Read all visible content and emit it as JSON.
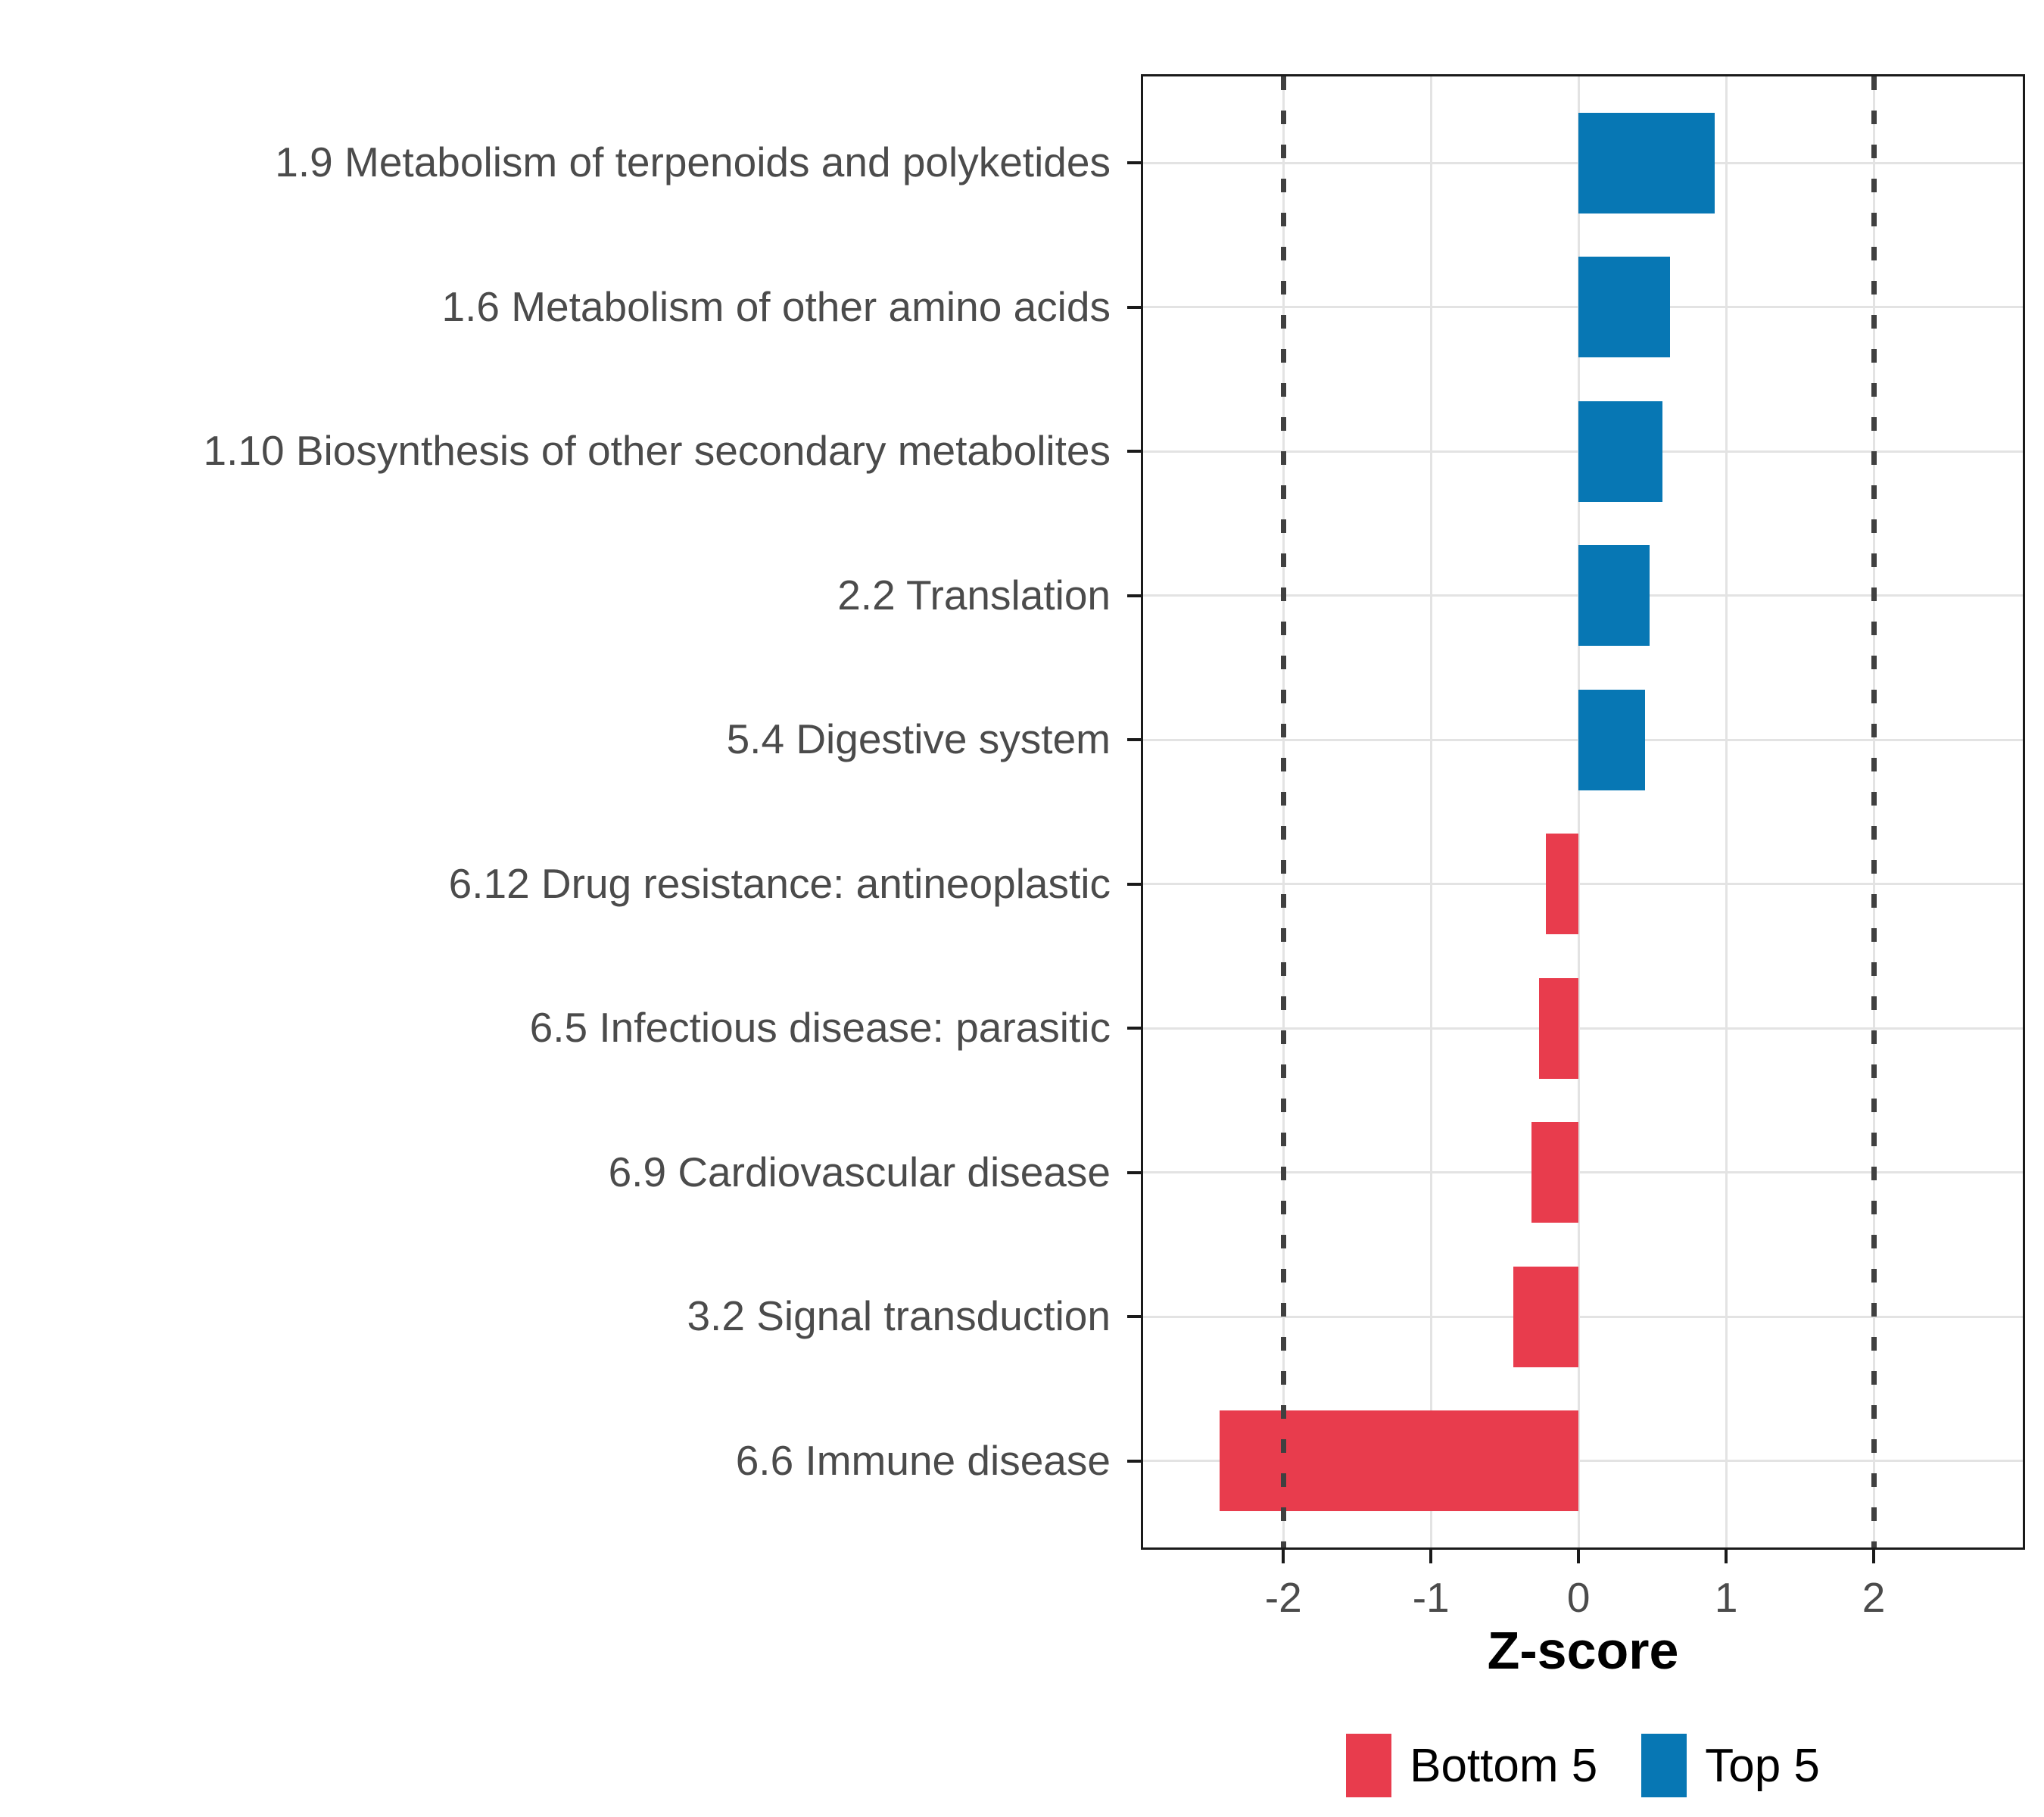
{
  "chart_data": {
    "type": "bar",
    "orientation": "horizontal",
    "title": "",
    "xlabel": "Z-score",
    "ylabel": "",
    "categories": [
      "1.9 Metabolism of terpenoids and polyketides",
      "1.6 Metabolism of other amino acids",
      "1.10 Biosynthesis of other secondary metabolites",
      "2.2 Translation",
      "5.4 Digestive system",
      "6.12 Drug resistance: antineoplastic",
      "6.5 Infectious disease: parasitic",
      "6.9 Cardiovascular disease",
      "3.2 Signal transduction",
      "6.6 Immune disease"
    ],
    "values": [
      0.92,
      0.62,
      0.57,
      0.48,
      0.45,
      -0.22,
      -0.27,
      -0.32,
      -0.44,
      -2.43
    ],
    "groups": [
      "Top 5",
      "Top 5",
      "Top 5",
      "Top 5",
      "Top 5",
      "Bottom 5",
      "Bottom 5",
      "Bottom 5",
      "Bottom 5",
      "Bottom 5"
    ],
    "x_ticks": [
      -2,
      -1,
      0,
      1,
      2
    ],
    "x_tick_labels": [
      "-2",
      "-1",
      "0",
      "1",
      "2"
    ],
    "xlim": [
      -2.95,
      3.01
    ],
    "reference_lines": [
      -2,
      2
    ],
    "grid": true,
    "legend_position": "bottom",
    "legend": [
      {
        "label": "Bottom 5",
        "color": "#E83C4D"
      },
      {
        "label": "Top 5",
        "color": "#0777B4"
      }
    ]
  },
  "style_colors": {
    "bar_positive": "#0777B4",
    "bar_negative": "#E83C4D",
    "panel_border": "#1a1a1a",
    "gridline": "#E3E3E3",
    "dashed_line": "#404040",
    "axis_text": "#4B4B4B",
    "title_text": "#000000",
    "background": "#FFFFFF"
  }
}
